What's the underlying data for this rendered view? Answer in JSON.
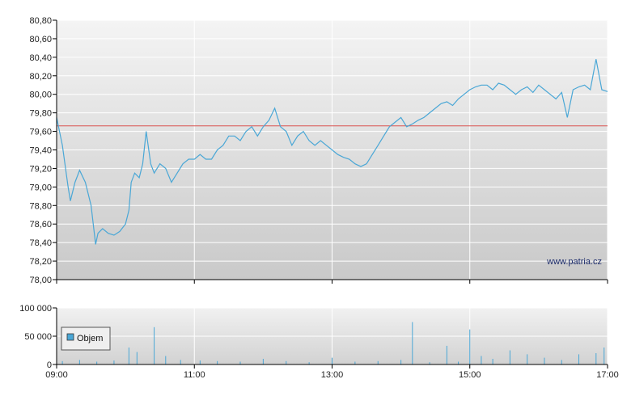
{
  "watermark": "www.patria.cz",
  "colors": {
    "line": "#4aa7d6",
    "reference": "#d9534f",
    "bg_top": "#f4f4f4",
    "bg_bottom": "#c9c9c9",
    "grid": "#ffffff",
    "axis": "#000000"
  },
  "chart_data": [
    {
      "type": "line",
      "title": "",
      "xlabel": "",
      "ylabel": "",
      "xlim": [
        "09:00",
        "17:00"
      ],
      "ylim": [
        78.0,
        80.8
      ],
      "x_ticks": [
        "09:00",
        "11:00",
        "13:00",
        "15:00",
        "17:00"
      ],
      "y_ticks": [
        "78,00",
        "78,20",
        "78,40",
        "78,60",
        "78,80",
        "79,00",
        "79,20",
        "79,40",
        "79,60",
        "79,80",
        "80,00",
        "80,20",
        "80,40",
        "80,60",
        "80,80"
      ],
      "reference_line": 79.66,
      "grid": true,
      "series": [
        {
          "x": [
            "09:00",
            "09:05",
            "09:10",
            "09:12",
            "09:16",
            "09:20",
            "09:25",
            "09:30",
            "09:34",
            "09:36",
            "09:40",
            "09:45",
            "09:50",
            "09:55",
            "10:00",
            "10:03",
            "10:05",
            "10:08",
            "10:12",
            "10:15",
            "10:18",
            "10:22",
            "10:25",
            "10:30",
            "10:35",
            "10:40",
            "10:45",
            "10:50",
            "10:55",
            "11:00",
            "11:05",
            "11:10",
            "11:15",
            "11:20",
            "11:25",
            "11:30",
            "11:35",
            "11:40",
            "11:45",
            "11:50",
            "11:55",
            "12:00",
            "12:05",
            "12:10",
            "12:15",
            "12:20",
            "12:25",
            "12:30",
            "12:35",
            "12:40",
            "12:45",
            "12:50",
            "12:55",
            "13:00",
            "13:05",
            "13:10",
            "13:15",
            "13:20",
            "13:25",
            "13:30",
            "13:35",
            "13:40",
            "13:45",
            "13:50",
            "13:55",
            "14:00",
            "14:05",
            "14:10",
            "14:15",
            "14:20",
            "14:25",
            "14:30",
            "14:35",
            "14:40",
            "14:45",
            "14:50",
            "14:55",
            "15:00",
            "15:05",
            "15:10",
            "15:15",
            "15:20",
            "15:25",
            "15:30",
            "15:35",
            "15:40",
            "15:45",
            "15:50",
            "15:55",
            "16:00",
            "16:05",
            "16:10",
            "16:15",
            "16:20",
            "16:25",
            "16:30",
            "16:35",
            "16:40",
            "16:45",
            "16:50",
            "16:55",
            "17:00"
          ],
          "y": [
            79.75,
            79.45,
            79.0,
            78.85,
            79.05,
            79.18,
            79.05,
            78.8,
            78.38,
            78.5,
            78.55,
            78.5,
            78.48,
            78.52,
            78.6,
            78.75,
            79.05,
            79.15,
            79.1,
            79.25,
            79.6,
            79.25,
            79.15,
            79.25,
            79.2,
            79.05,
            79.15,
            79.25,
            79.3,
            79.3,
            79.35,
            79.3,
            79.3,
            79.4,
            79.45,
            79.55,
            79.55,
            79.5,
            79.6,
            79.65,
            79.55,
            79.65,
            79.72,
            79.85,
            79.65,
            79.6,
            79.45,
            79.55,
            79.6,
            79.5,
            79.45,
            79.5,
            79.45,
            79.4,
            79.35,
            79.32,
            79.3,
            79.25,
            79.22,
            79.25,
            79.35,
            79.45,
            79.55,
            79.65,
            79.7,
            79.75,
            79.65,
            79.68,
            79.72,
            79.75,
            79.8,
            79.85,
            79.9,
            79.92,
            79.88,
            79.95,
            80.0,
            80.05,
            80.08,
            80.1,
            80.1,
            80.05,
            80.12,
            80.1,
            80.05,
            80.0,
            80.05,
            80.08,
            80.02,
            80.1,
            80.05,
            80.0,
            79.95,
            80.02,
            79.75,
            80.05,
            80.08,
            80.1,
            80.05,
            80.38,
            80.05,
            80.03
          ]
        }
      ]
    },
    {
      "type": "bar",
      "title": "",
      "xlabel": "",
      "ylabel": "",
      "ylim": [
        0,
        100000
      ],
      "x_ticks": [
        "09:00",
        "11:00",
        "13:00",
        "15:00",
        "17:00"
      ],
      "y_ticks": [
        "0",
        "50 000",
        "100 000"
      ],
      "legend": {
        "label": "Objem",
        "position": "left"
      },
      "grid": true,
      "series": [
        {
          "name": "Objem",
          "x": [
            "09:05",
            "09:20",
            "09:35",
            "09:50",
            "10:03",
            "10:10",
            "10:25",
            "10:35",
            "10:48",
            "11:05",
            "11:20",
            "11:40",
            "12:00",
            "12:20",
            "12:40",
            "13:00",
            "13:20",
            "13:40",
            "14:00",
            "14:10",
            "14:25",
            "14:40",
            "14:50",
            "15:00",
            "15:10",
            "15:20",
            "15:35",
            "15:50",
            "16:05",
            "16:20",
            "16:35",
            "16:50",
            "16:57"
          ],
          "y": [
            6000,
            8000,
            5000,
            7000,
            30000,
            22000,
            66000,
            15000,
            8000,
            7000,
            6000,
            5000,
            10000,
            6000,
            4000,
            12000,
            5000,
            6000,
            8000,
            75000,
            4000,
            33000,
            5000,
            62000,
            15000,
            10000,
            25000,
            18000,
            12000,
            8000,
            18000,
            20000,
            30000
          ]
        }
      ]
    }
  ]
}
